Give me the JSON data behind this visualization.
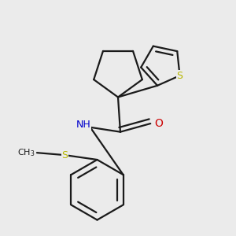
{
  "bg_color": "#ebebeb",
  "bond_color": "#1a1a1a",
  "S_color": "#b8b800",
  "N_color": "#0000cc",
  "O_color": "#cc0000",
  "line_width": 1.6,
  "figsize": [
    3.0,
    3.0
  ],
  "dpi": 100,
  "xlim": [
    -2.5,
    2.5
  ],
  "ylim": [
    -2.8,
    2.2
  ]
}
